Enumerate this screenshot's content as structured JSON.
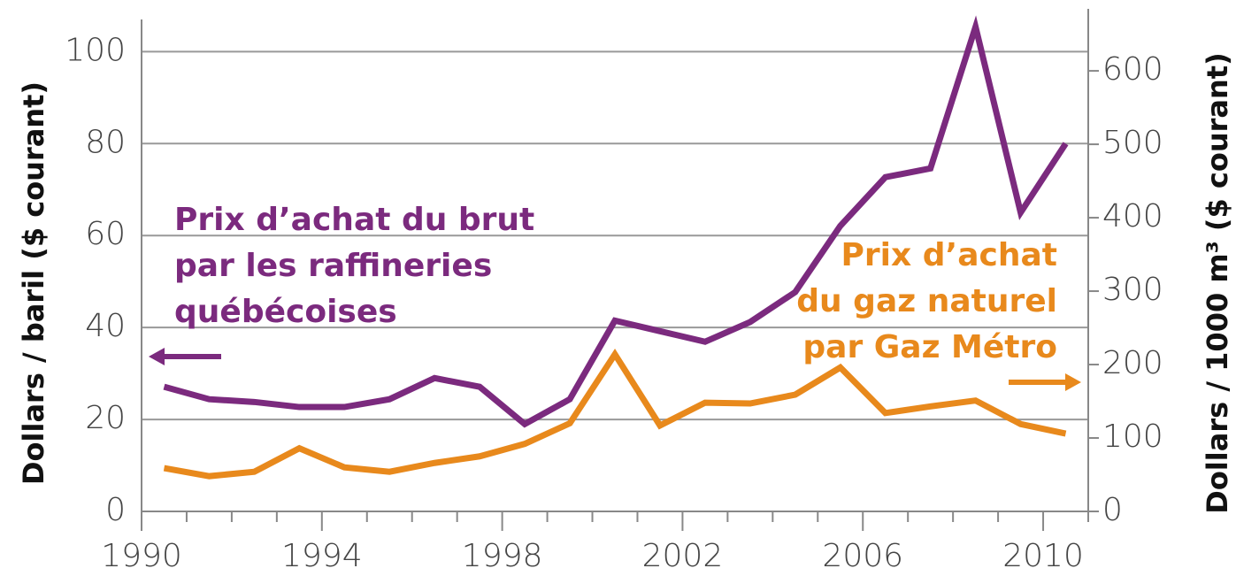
{
  "chart_data": {
    "type": "line",
    "x": [
      1990.5,
      1991.5,
      1992.5,
      1993.5,
      1994.5,
      1995.5,
      1996.5,
      1997.5,
      1998.5,
      1999.5,
      2000.5,
      2001.5,
      2002.5,
      2003.5,
      2004.5,
      2005.5,
      2006.5,
      2007.5,
      2008.5,
      2009.5,
      2010.5
    ],
    "series": [
      {
        "name": "Prix d’achat du brut par les raffineries québécoises",
        "color": "#7b2a7e",
        "values": [
          27.1,
          24.4,
          23.8,
          22.7,
          22.7,
          24.4,
          29.0,
          27.1,
          19.0,
          24.4,
          41.5,
          39.2,
          36.9,
          41.2,
          47.7,
          62.1,
          72.7,
          74.6,
          105.4,
          65.0,
          80.0
        ]
      },
      {
        "name": "Prix d’achat du gaz naturel par Gaz Métro",
        "color": "#e8891c",
        "axis": "y2",
        "values": [
          59,
          48,
          54,
          86,
          60,
          54,
          66,
          75,
          92,
          120,
          214,
          117,
          148,
          147,
          159,
          196,
          134,
          143,
          151,
          119,
          106
        ]
      }
    ],
    "annotations": [
      {
        "lines": [
          "Prix d’achat du brut",
          "par les raffineries",
          "québécoises"
        ],
        "color": "#7b2a7e"
      },
      {
        "lines": [
          "Prix d’achat",
          "du gaz naturel",
          "par Gaz Métro"
        ],
        "color": "#e8891c"
      }
    ],
    "ylabel": "Dollars / baril ($ courant)",
    "y2label": "Dollars / 1000 m³ ($ courant)",
    "xlim": [
      1990,
      2011
    ],
    "xticks": [
      1990,
      1994,
      1998,
      2002,
      2006,
      2010
    ],
    "xminorticks": [
      1991,
      1992,
      1993,
      1995,
      1996,
      1997,
      1999,
      2000,
      2001,
      2003,
      2004,
      2005,
      2007,
      2008,
      2009,
      2011
    ],
    "ylim": [
      0,
      107
    ],
    "yticks": [
      0,
      20,
      40,
      60,
      80,
      100
    ],
    "y2lim": [
      0,
      670
    ],
    "y2ticks": [
      0,
      100,
      200,
      300,
      400,
      500,
      600
    ],
    "grid": true
  }
}
